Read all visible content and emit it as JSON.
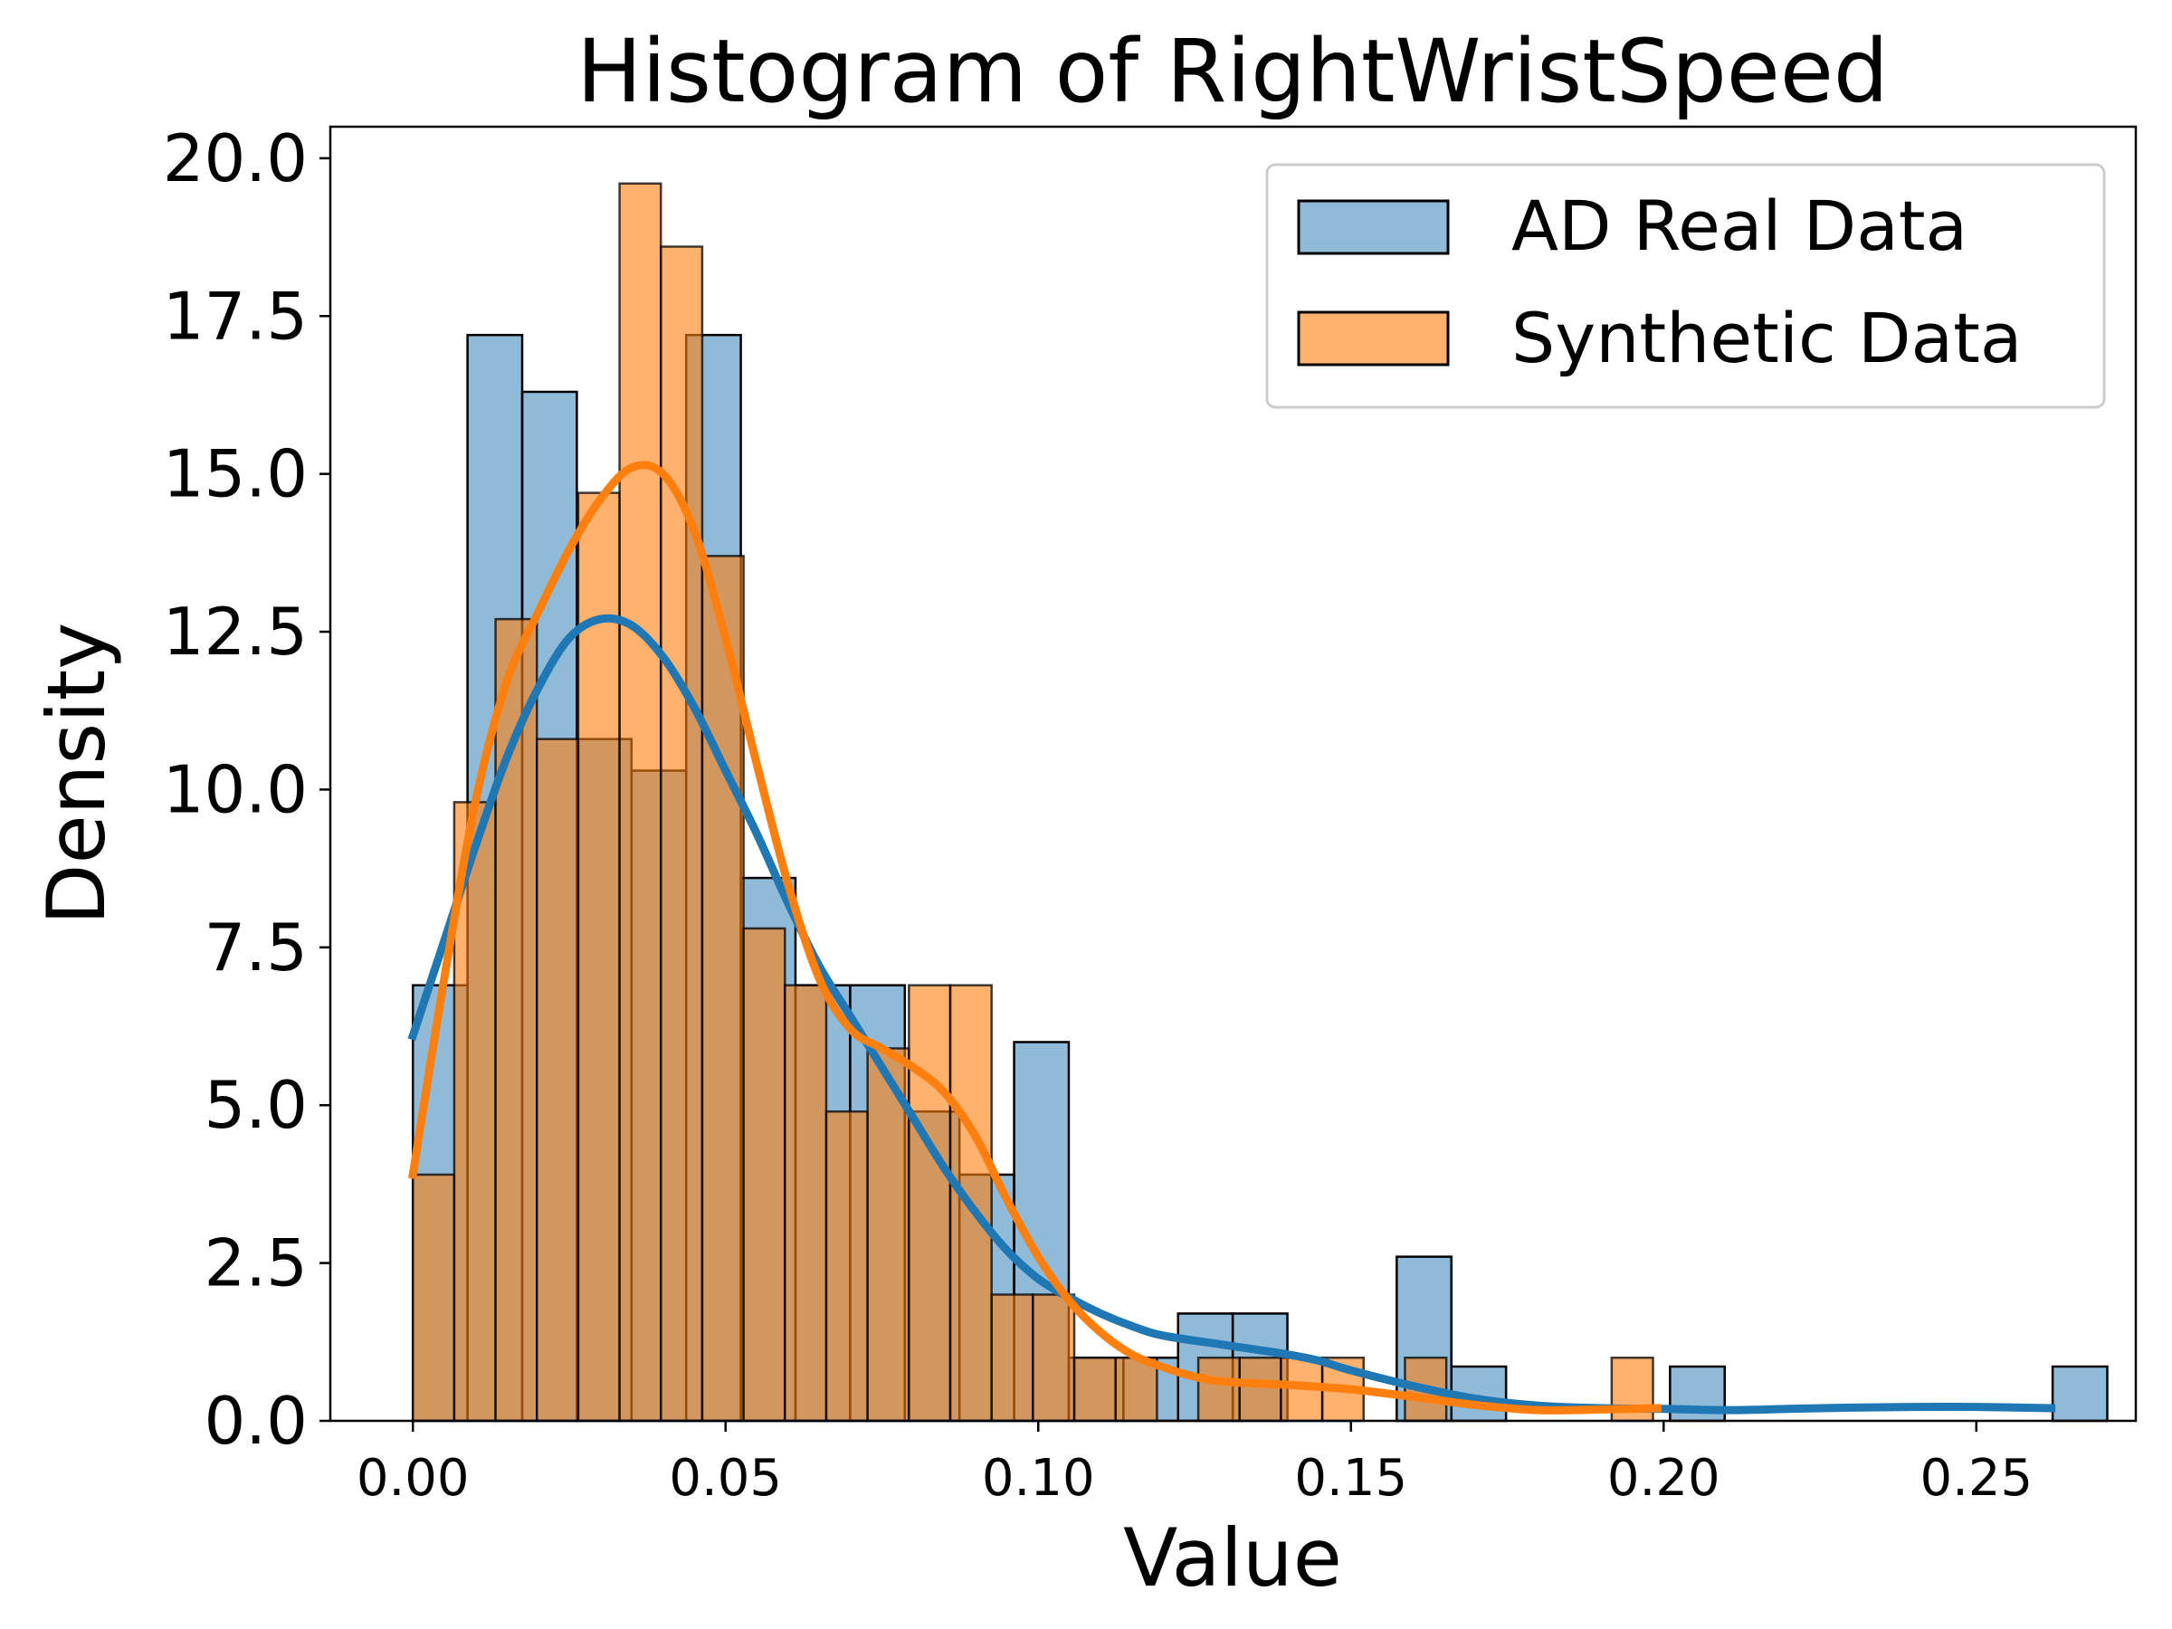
{
  "chart_data": {
    "type": "histogram",
    "title": "Histogram of RightWristSpeed",
    "xlabel": "Value",
    "ylabel": "Density",
    "xlim": [
      -0.0132,
      0.2755
    ],
    "ylim": [
      0,
      20.5
    ],
    "xticks": [
      0.0,
      0.05,
      0.1,
      0.15,
      0.2,
      0.25
    ],
    "xtick_labels": [
      "0.00",
      "0.05",
      "0.10",
      "0.15",
      "0.20",
      "0.25"
    ],
    "yticks": [
      0,
      2.5,
      5,
      7.5,
      10,
      12.5,
      15,
      17.5,
      20
    ],
    "ytick_labels": [
      "0.0",
      "2.5",
      "5.0",
      "7.5",
      "10.0",
      "12.5",
      "15.0",
      "17.5",
      "20.0"
    ],
    "grid": false,
    "legend_position": "upper right",
    "series": [
      {
        "name": "AD Real Data",
        "color": "#1f77b4",
        "bin_start": 0.0,
        "bin_width": 0.00874,
        "values": [
          6.9,
          17.2,
          16.3,
          10.8,
          10.3,
          17.2,
          8.6,
          6.9,
          6.9,
          4.9,
          3.9,
          6.0,
          1.0,
          1.0,
          1.7,
          1.7,
          0.0,
          0.0,
          2.6,
          0.86,
          0.0,
          0.0,
          0.0,
          0.86,
          0.0,
          0.0,
          0.0,
          0.0,
          0.0,
          0.0,
          0.86,
          0.0,
          0.0,
          0.0,
          0.0,
          0.0,
          0.0,
          0.0,
          0.0,
          0.0,
          0.0,
          0.0,
          0.0,
          0.0,
          0.0,
          0.0,
          0.0,
          0.0,
          0.0,
          0.0,
          0.0,
          0.0,
          0.0,
          0.0,
          0.0,
          0.0,
          0.0,
          0.0,
          0.0,
          0.0
        ],
        "kde": [
          [
            0.0,
            6.1
          ],
          [
            0.005,
            7.6
          ],
          [
            0.01,
            9.1
          ],
          [
            0.015,
            10.5
          ],
          [
            0.02,
            11.6
          ],
          [
            0.025,
            12.4
          ],
          [
            0.03,
            12.7
          ],
          [
            0.035,
            12.6
          ],
          [
            0.04,
            12.1
          ],
          [
            0.045,
            11.3
          ],
          [
            0.05,
            10.3
          ],
          [
            0.055,
            9.3
          ],
          [
            0.06,
            8.2
          ],
          [
            0.065,
            7.2
          ],
          [
            0.07,
            6.4
          ],
          [
            0.075,
            5.6
          ],
          [
            0.08,
            4.8
          ],
          [
            0.085,
            4.0
          ],
          [
            0.09,
            3.3
          ],
          [
            0.095,
            2.7
          ],
          [
            0.1,
            2.25
          ],
          [
            0.105,
            1.95
          ],
          [
            0.11,
            1.7
          ],
          [
            0.115,
            1.5
          ],
          [
            0.12,
            1.35
          ],
          [
            0.13,
            1.2
          ],
          [
            0.14,
            1.05
          ],
          [
            0.145,
            0.95
          ],
          [
            0.15,
            0.8
          ],
          [
            0.16,
            0.55
          ],
          [
            0.17,
            0.35
          ],
          [
            0.18,
            0.24
          ],
          [
            0.19,
            0.2
          ],
          [
            0.2,
            0.19
          ],
          [
            0.21,
            0.17
          ],
          [
            0.22,
            0.19
          ],
          [
            0.23,
            0.21
          ],
          [
            0.24,
            0.22
          ],
          [
            0.25,
            0.22
          ],
          [
            0.262,
            0.2
          ]
        ]
      },
      {
        "name": "Synthetic Data",
        "color": "#ff7f0e",
        "bin_start": 0.0,
        "bin_width": 0.00661,
        "values": [
          3.9,
          9.8,
          12.7,
          10.8,
          14.7,
          19.6,
          18.6,
          13.7,
          7.8,
          6.9,
          4.9,
          5.9,
          6.9,
          6.9,
          2.0,
          2.0,
          1.0,
          1.0,
          0.0,
          1.0,
          1.0,
          1.0,
          1.0,
          0.0,
          1.0,
          0.0,
          0.0,
          0.0,
          0.0,
          1.0
        ],
        "kde": [
          [
            0.0,
            3.9
          ],
          [
            0.005,
            7.0
          ],
          [
            0.01,
            9.8
          ],
          [
            0.015,
            11.7
          ],
          [
            0.02,
            12.8
          ],
          [
            0.025,
            13.8
          ],
          [
            0.03,
            14.6
          ],
          [
            0.035,
            15.1
          ],
          [
            0.04,
            15.0
          ],
          [
            0.045,
            14.1
          ],
          [
            0.05,
            12.4
          ],
          [
            0.055,
            10.4
          ],
          [
            0.06,
            8.5
          ],
          [
            0.065,
            7.0
          ],
          [
            0.07,
            6.2
          ],
          [
            0.075,
            5.9
          ],
          [
            0.08,
            5.6
          ],
          [
            0.085,
            5.2
          ],
          [
            0.09,
            4.5
          ],
          [
            0.095,
            3.5
          ],
          [
            0.1,
            2.6
          ],
          [
            0.105,
            1.9
          ],
          [
            0.11,
            1.4
          ],
          [
            0.115,
            1.05
          ],
          [
            0.12,
            0.85
          ],
          [
            0.125,
            0.7
          ],
          [
            0.13,
            0.62
          ],
          [
            0.14,
            0.57
          ],
          [
            0.15,
            0.5
          ],
          [
            0.16,
            0.38
          ],
          [
            0.17,
            0.25
          ],
          [
            0.18,
            0.17
          ],
          [
            0.19,
            0.18
          ],
          [
            0.199,
            0.2
          ]
        ]
      }
    ]
  }
}
